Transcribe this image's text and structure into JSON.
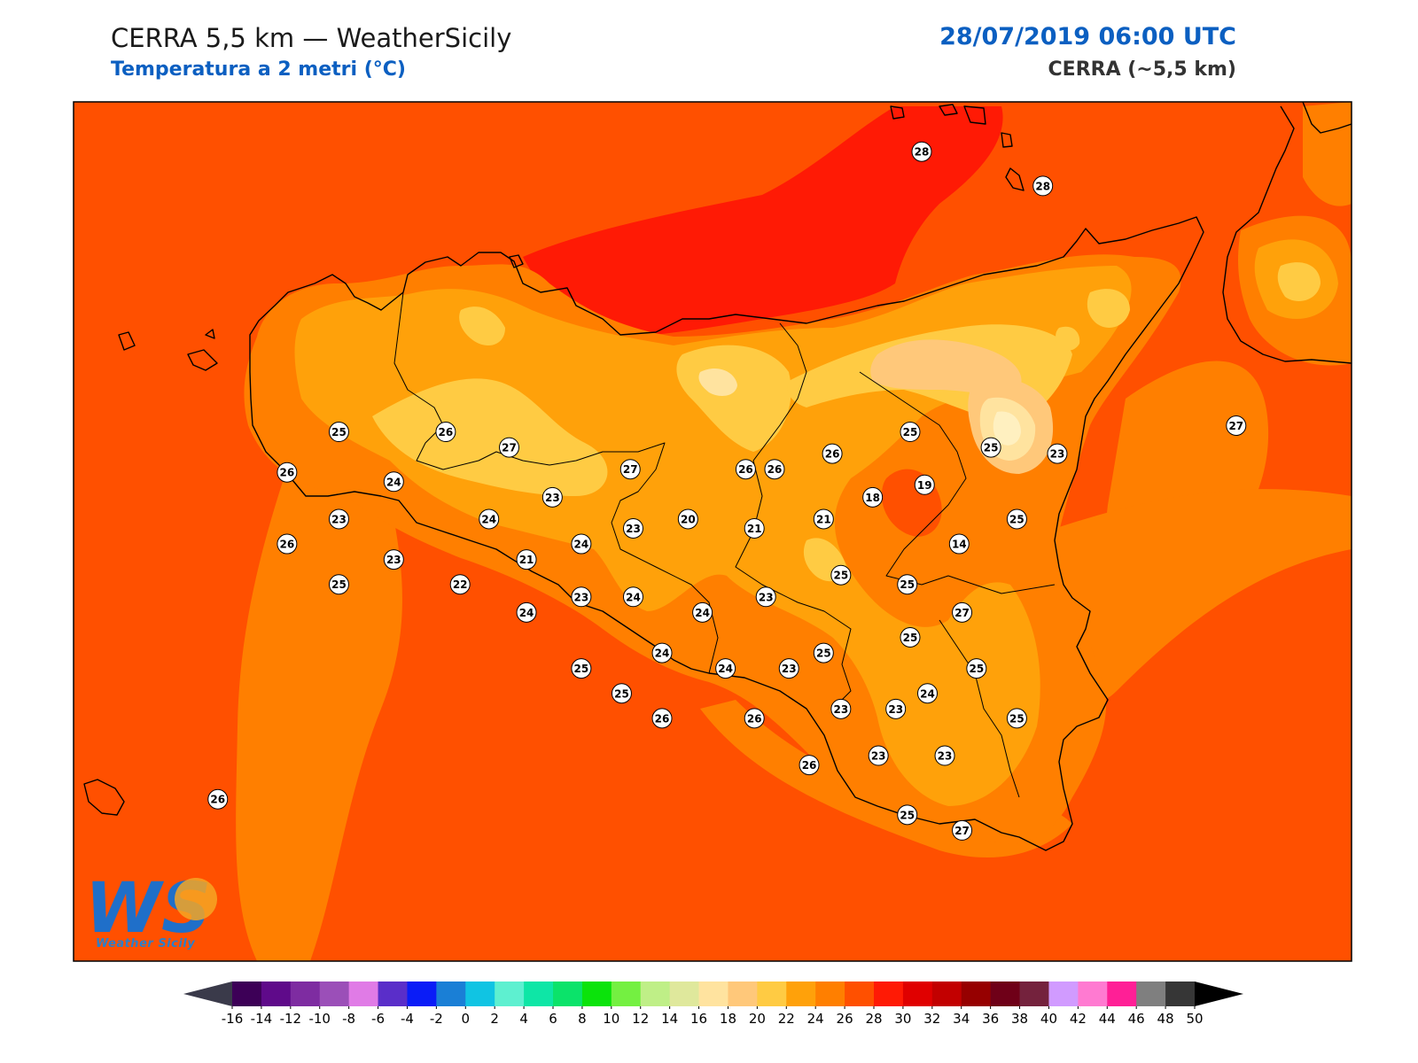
{
  "header": {
    "title": "CERRA 5,5 km — WeatherSicily",
    "subtitle": "Temperatura a 2 metri (°C)",
    "datetime": "28/07/2019 06:00 UTC",
    "model": "CERRA (~5,5 km)"
  },
  "logo": {
    "mark": "WS",
    "name": "Weather Sicily"
  },
  "colorbar": {
    "ticks": [
      "-16",
      "-14",
      "-12",
      "-10",
      "-8",
      "-6",
      "-4",
      "-2",
      "0",
      "2",
      "4",
      "6",
      "8",
      "10",
      "12",
      "14",
      "16",
      "18",
      "20",
      "22",
      "24",
      "26",
      "28",
      "30",
      "32",
      "34",
      "36",
      "38",
      "40",
      "42",
      "44",
      "46",
      "48",
      "50"
    ],
    "colors": [
      "#3d0057",
      "#5f0a8a",
      "#7e2ca1",
      "#9b4fb8",
      "#e07be6",
      "#5a2ec9",
      "#0a1cf7",
      "#1a7fd6",
      "#10c4e3",
      "#5ef0d0",
      "#0ee6a6",
      "#0be36a",
      "#0be30b",
      "#74f041",
      "#bfef87",
      "#dfe89c",
      "#ffe39f",
      "#ffc87a",
      "#ffcb43",
      "#ffa10a",
      "#ff7f00",
      "#ff5000",
      "#ff1a05",
      "#e00000",
      "#c20000",
      "#960000",
      "#6f0018",
      "#74223d",
      "#d19bff",
      "#ff7ad1",
      "#ff1f96",
      "#7f7f7f",
      "#363636"
    ],
    "under_color": "#3a3a4a",
    "over_color": "#000000"
  },
  "stations": [
    {
      "value": "28",
      "lon": 14.54,
      "lat": 39.1
    },
    {
      "value": "28",
      "lon": 14.96,
      "lat": 38.99
    },
    {
      "value": "27",
      "lon": 15.63,
      "lat": 38.22
    },
    {
      "value": "25",
      "lon": 12.52,
      "lat": 38.2
    },
    {
      "value": "26",
      "lon": 12.89,
      "lat": 38.2
    },
    {
      "value": "27",
      "lon": 13.11,
      "lat": 38.15
    },
    {
      "value": "27",
      "lon": 13.53,
      "lat": 38.08
    },
    {
      "value": "26",
      "lon": 13.93,
      "lat": 38.08
    },
    {
      "value": "26",
      "lon": 14.03,
      "lat": 38.08
    },
    {
      "value": "26",
      "lon": 14.23,
      "lat": 38.13
    },
    {
      "value": "25",
      "lon": 14.5,
      "lat": 38.2
    },
    {
      "value": "25",
      "lon": 14.78,
      "lat": 38.15
    },
    {
      "value": "23",
      "lon": 15.01,
      "lat": 38.13
    },
    {
      "value": "26",
      "lon": 12.34,
      "lat": 38.07
    },
    {
      "value": "24",
      "lon": 12.71,
      "lat": 38.04
    },
    {
      "value": "23",
      "lon": 13.26,
      "lat": 37.99
    },
    {
      "value": "19",
      "lon": 14.55,
      "lat": 38.03
    },
    {
      "value": "18",
      "lon": 14.37,
      "lat": 37.99
    },
    {
      "value": "23",
      "lon": 12.52,
      "lat": 37.92
    },
    {
      "value": "24",
      "lon": 13.04,
      "lat": 37.92
    },
    {
      "value": "20",
      "lon": 13.73,
      "lat": 37.92
    },
    {
      "value": "21",
      "lon": 13.96,
      "lat": 37.89
    },
    {
      "value": "21",
      "lon": 14.2,
      "lat": 37.92
    },
    {
      "value": "25",
      "lon": 14.87,
      "lat": 37.92
    },
    {
      "value": "23",
      "lon": 13.54,
      "lat": 37.89
    },
    {
      "value": "24",
      "lon": 13.36,
      "lat": 37.84
    },
    {
      "value": "14",
      "lon": 14.67,
      "lat": 37.84
    },
    {
      "value": "26",
      "lon": 12.34,
      "lat": 37.84
    },
    {
      "value": "23",
      "lon": 12.71,
      "lat": 37.79
    },
    {
      "value": "21",
      "lon": 13.17,
      "lat": 37.79
    },
    {
      "value": "25",
      "lon": 14.26,
      "lat": 37.74
    },
    {
      "value": "25",
      "lon": 12.52,
      "lat": 37.71
    },
    {
      "value": "22",
      "lon": 12.94,
      "lat": 37.71
    },
    {
      "value": "25",
      "lon": 14.49,
      "lat": 37.71
    },
    {
      "value": "23",
      "lon": 13.36,
      "lat": 37.67
    },
    {
      "value": "24",
      "lon": 13.54,
      "lat": 37.67
    },
    {
      "value": "23",
      "lon": 14.0,
      "lat": 37.67
    },
    {
      "value": "24",
      "lon": 13.17,
      "lat": 37.62
    },
    {
      "value": "24",
      "lon": 13.78,
      "lat": 37.62
    },
    {
      "value": "27",
      "lon": 14.68,
      "lat": 37.62
    },
    {
      "value": "25",
      "lon": 14.5,
      "lat": 37.54
    },
    {
      "value": "24",
      "lon": 13.64,
      "lat": 37.49
    },
    {
      "value": "25",
      "lon": 14.2,
      "lat": 37.49
    },
    {
      "value": "24",
      "lon": 13.86,
      "lat": 37.44
    },
    {
      "value": "23",
      "lon": 14.08,
      "lat": 37.44
    },
    {
      "value": "25",
      "lon": 13.36,
      "lat": 37.44
    },
    {
      "value": "25",
      "lon": 14.73,
      "lat": 37.44
    },
    {
      "value": "25",
      "lon": 13.5,
      "lat": 37.36
    },
    {
      "value": "24",
      "lon": 14.56,
      "lat": 37.36
    },
    {
      "value": "23",
      "lon": 14.26,
      "lat": 37.31
    },
    {
      "value": "23",
      "lon": 14.45,
      "lat": 37.31
    },
    {
      "value": "26",
      "lon": 13.64,
      "lat": 37.28
    },
    {
      "value": "26",
      "lon": 13.96,
      "lat": 37.28
    },
    {
      "value": "25",
      "lon": 14.87,
      "lat": 37.28
    },
    {
      "value": "23",
      "lon": 14.39,
      "lat": 37.16
    },
    {
      "value": "23",
      "lon": 14.62,
      "lat": 37.16
    },
    {
      "value": "26",
      "lon": 14.15,
      "lat": 37.13
    },
    {
      "value": "25",
      "lon": 14.49,
      "lat": 36.97
    },
    {
      "value": "27",
      "lon": 14.68,
      "lat": 36.92
    },
    {
      "value": "26",
      "lon": 12.1,
      "lat": 37.02
    }
  ]
}
